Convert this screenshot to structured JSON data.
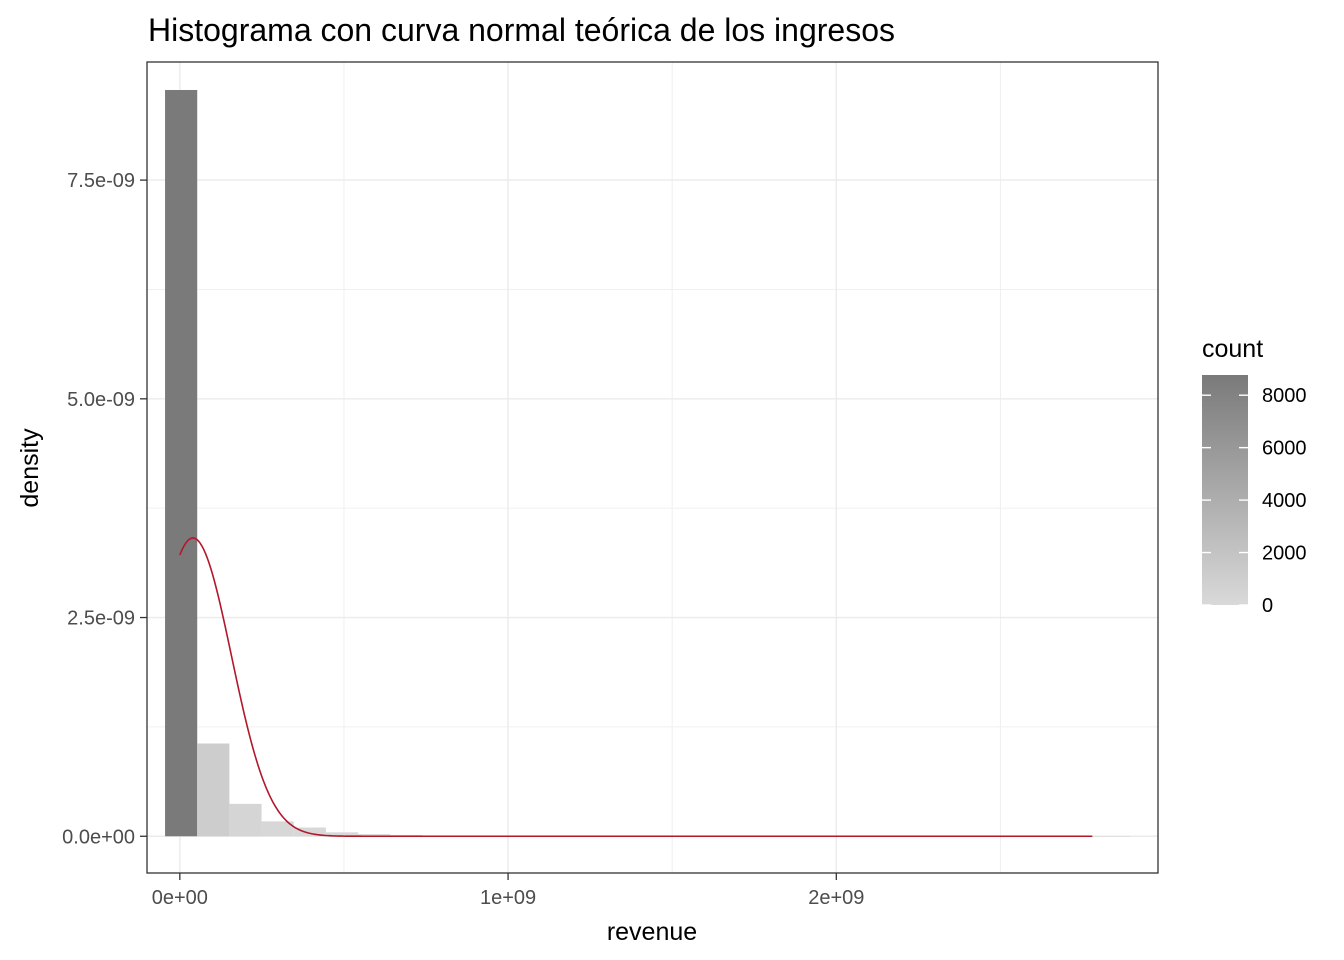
{
  "chart_data": {
    "type": "histogram",
    "title": "Histograma con curva normal teórica de los ingresos",
    "xlabel": "revenue",
    "ylabel": "density",
    "xlim": [
      -100000000,
      2980000000
    ],
    "ylim": [
      -4.2e-10,
      8.85e-09
    ],
    "x_ticks": [
      {
        "value": 0,
        "label": "0e+00"
      },
      {
        "value": 1000000000,
        "label": "1e+09"
      },
      {
        "value": 2000000000,
        "label": "2e+09"
      }
    ],
    "y_ticks": [
      {
        "value": 0,
        "label": "0.0e+00"
      },
      {
        "value": 2.5e-09,
        "label": "2.5e-09"
      },
      {
        "value": 5e-09,
        "label": "5.0e-09"
      },
      {
        "value": 7.5e-09,
        "label": "7.5e-09"
      }
    ],
    "grid": true,
    "bins": {
      "start": -45000000,
      "width": 98000000,
      "densities": [
        8.53e-09,
        1.06e-09,
        3.7e-10,
        1.7e-10,
        1e-10,
        4.5e-11,
        2.5e-11,
        1.5e-11,
        8e-12,
        5e-12,
        3e-12,
        2e-12,
        2e-12,
        1e-12,
        1e-12,
        1e-12,
        1e-12,
        5e-13,
        5e-13,
        5e-13,
        5e-13,
        5e-13,
        5e-13,
        5e-13,
        5e-13,
        5e-13,
        5e-13,
        5e-13,
        5e-13,
        5e-13
      ]
    },
    "fill_scale": {
      "name": "count",
      "low_color": "#d9d9d9",
      "high_color": "#7a7a7a",
      "max_count": 8770,
      "ticks": [
        0,
        2000,
        4000,
        6000,
        8000
      ],
      "tick_labels": [
        "0",
        "2000",
        "4000",
        "6000",
        "8000"
      ]
    },
    "normal_curve": {
      "color": "#b2182b",
      "mean": 40000000,
      "sd": 117000000,
      "x_range": [
        0,
        2780000000
      ]
    }
  }
}
